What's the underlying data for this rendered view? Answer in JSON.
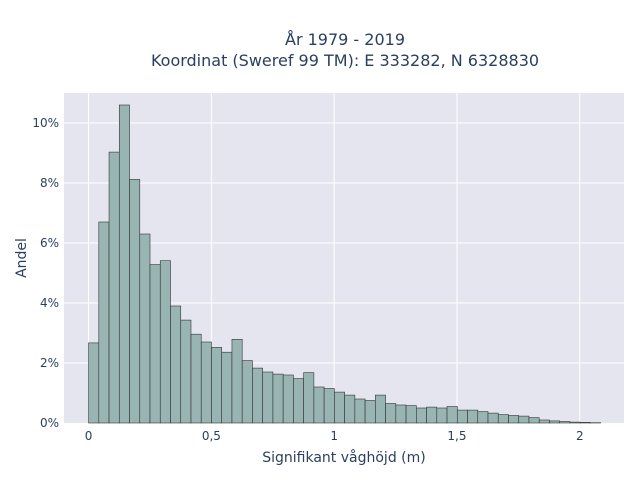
{
  "chart_data": {
    "type": "bar",
    "title_line1": "År 1979 - 2019",
    "title_line2": "Koordinat (Sweref 99 TM): E 333282, N 6328830",
    "xlabel": "Signifikant våghöjd (m)",
    "ylabel": "Andel",
    "xlim": [
      -0.1,
      2.18
    ],
    "ylim": [
      0,
      0.11
    ],
    "x_ticks": [
      {
        "value": 0,
        "label": "0"
      },
      {
        "value": 0.5,
        "label": "0,5"
      },
      {
        "value": 1,
        "label": "1"
      },
      {
        "value": 1.5,
        "label": "1,5"
      },
      {
        "value": 2,
        "label": "2"
      }
    ],
    "y_ticks": [
      {
        "value": 0,
        "label": "0%"
      },
      {
        "value": 0.02,
        "label": "2%"
      },
      {
        "value": 0.04,
        "label": "4%"
      },
      {
        "value": 0.06,
        "label": "6%"
      },
      {
        "value": 0.08,
        "label": "8%"
      },
      {
        "value": 0.1,
        "label": "10%"
      }
    ],
    "grid": true,
    "bin_start": 0.0,
    "bin_width": 0.0417,
    "values": [
      0.0267,
      0.067,
      0.0903,
      0.106,
      0.0812,
      0.063,
      0.0528,
      0.0541,
      0.039,
      0.0343,
      0.0296,
      0.027,
      0.0252,
      0.0236,
      0.0279,
      0.0208,
      0.0183,
      0.017,
      0.0163,
      0.016,
      0.0148,
      0.0168,
      0.012,
      0.0115,
      0.0103,
      0.0093,
      0.008,
      0.0075,
      0.0093,
      0.0065,
      0.006,
      0.0058,
      0.005,
      0.0053,
      0.005,
      0.0055,
      0.0043,
      0.0043,
      0.0038,
      0.0033,
      0.0028,
      0.0025,
      0.0023,
      0.0018,
      0.001,
      0.0007,
      0.0005,
      0.0003,
      0.0002,
      0.0001
    ],
    "colors": {
      "bar_fill": "#98b5b3",
      "bar_stroke": "#333333",
      "plot_bg": "#e5e5f0",
      "grid": "#ffffff",
      "text": "#2a3f5f"
    }
  }
}
